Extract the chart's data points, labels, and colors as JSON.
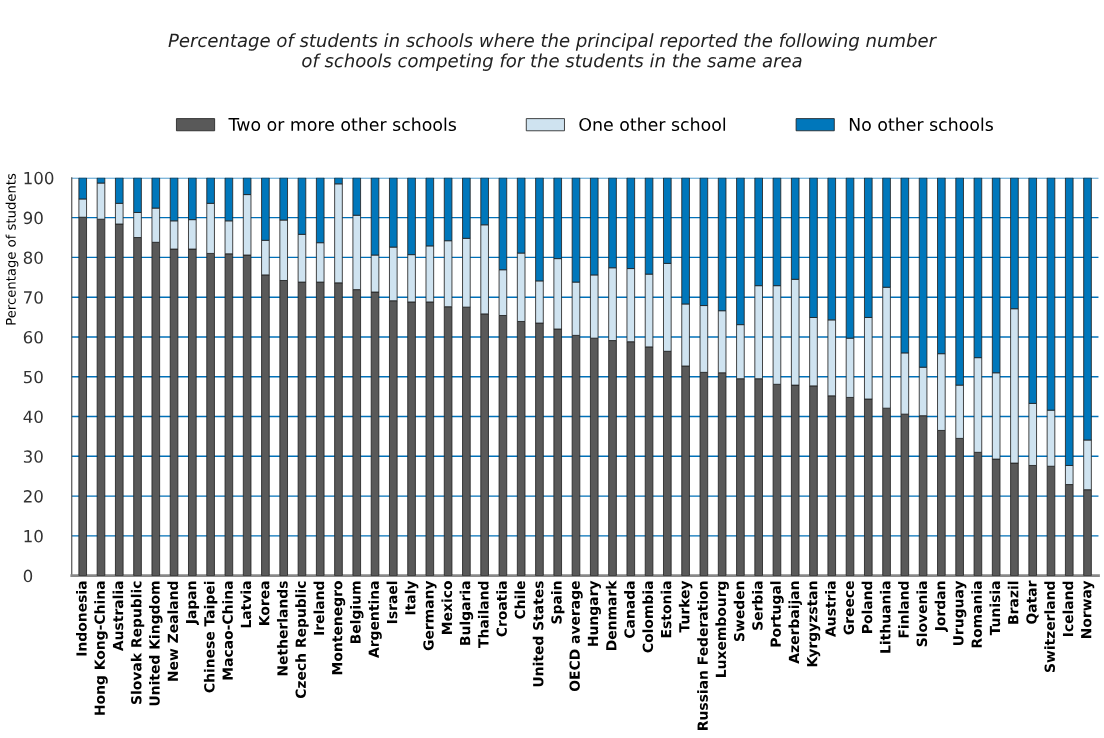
{
  "chart_data": {
    "type": "bar",
    "stacked": true,
    "title": "Percentage of students in schools where the principal reported the following number\nof schools competing for the students in the same area",
    "ylabel": "Percentage of students",
    "categories": [
      "Indonesia",
      "Hong Kong-China",
      "Australia",
      "Slovak Republic",
      "United Kingdom",
      "New Zealand",
      "Japan",
      "Chinese Taipei",
      "Macao-China",
      "Latvia",
      "Korea",
      "Netherlands",
      "Czech Republic",
      "Ireland",
      "Montenegro",
      "Belgium",
      "Argentina",
      "Israel",
      "Italy",
      "Germany",
      "Mexico",
      "Bulgaria",
      "Thailand",
      "Croatia",
      "Chile",
      "United States",
      "Spain",
      "OECD average",
      "Hungary",
      "Denmark",
      "Canada",
      "Colombia",
      "Estonia",
      "Turkey",
      "Russian Federation",
      "Luxembourg",
      "Sweden",
      "Serbia",
      "Portugal",
      "Azerbaijan",
      "Kyrgyzstan",
      "Austria",
      "Greece",
      "Poland",
      "Lithuania",
      "Finland",
      "Slovenia",
      "Jordan",
      "Uruguay",
      "Romania",
      "Tunisia",
      "Brazil",
      "Qatar",
      "Switzerland",
      "Iceland",
      "Norway"
    ],
    "series": [
      {
        "name": "Two or more other schools",
        "color": "#595959",
        "values": [
          90.1,
          89.6,
          88.4,
          85.0,
          83.8,
          82.1,
          82.1,
          81.0,
          80.9,
          80.6,
          75.6,
          74.2,
          73.8,
          73.8,
          73.6,
          71.9,
          71.3,
          69.1,
          68.8,
          68.8,
          67.6,
          67.5,
          65.8,
          65.4,
          63.9,
          63.5,
          62.0,
          60.4,
          59.7,
          59.1,
          58.8,
          57.5,
          56.4,
          52.7,
          51.1,
          51.0,
          49.5,
          49.5,
          48.1,
          47.9,
          47.7,
          45.2,
          44.8,
          44.4,
          42.1,
          40.6,
          40.2,
          36.5,
          34.5,
          31.0,
          29.3,
          28.3,
          27.7,
          27.5,
          22.9,
          21.6
        ]
      },
      {
        "name": "One other school",
        "color": "#cfe3f0",
        "values": [
          4.6,
          9.1,
          5.2,
          6.3,
          8.6,
          7.1,
          7.4,
          12.6,
          8.3,
          15.2,
          8.7,
          15.2,
          12.0,
          9.9,
          24.9,
          18.7,
          9.3,
          13.5,
          11.9,
          14.1,
          16.6,
          17.3,
          22.4,
          11.5,
          17.2,
          10.6,
          17.7,
          13.4,
          15.9,
          18.3,
          18.4,
          18.3,
          22.1,
          15.6,
          16.8,
          15.6,
          13.6,
          23.4,
          24.8,
          26.6,
          17.2,
          19.1,
          14.9,
          20.5,
          30.4,
          15.4,
          12.2,
          19.3,
          13.4,
          23.8,
          21.7,
          38.8,
          15.6,
          14.1,
          4.8,
          12.5
        ]
      },
      {
        "name": "No other schools",
        "color": "#0077bb",
        "values": [
          5.3,
          1.3,
          6.4,
          8.7,
          7.6,
          10.8,
          10.5,
          6.4,
          10.8,
          4.2,
          15.7,
          10.6,
          14.2,
          16.3,
          1.5,
          9.4,
          19.4,
          17.4,
          19.3,
          17.1,
          15.8,
          15.2,
          11.8,
          23.1,
          18.9,
          25.9,
          20.3,
          26.2,
          24.4,
          22.6,
          22.8,
          24.2,
          21.5,
          31.7,
          32.1,
          33.4,
          36.9,
          27.1,
          27.1,
          25.5,
          35.1,
          35.7,
          40.3,
          35.1,
          27.5,
          44.0,
          47.6,
          44.2,
          52.1,
          45.2,
          49.0,
          32.9,
          56.7,
          58.4,
          72.3,
          65.9
        ]
      }
    ],
    "ylim": [
      0,
      100
    ],
    "yticks": [
      0,
      10,
      20,
      30,
      40,
      50,
      60,
      70,
      80,
      90,
      100
    ],
    "grid": "y",
    "legend": "top"
  }
}
